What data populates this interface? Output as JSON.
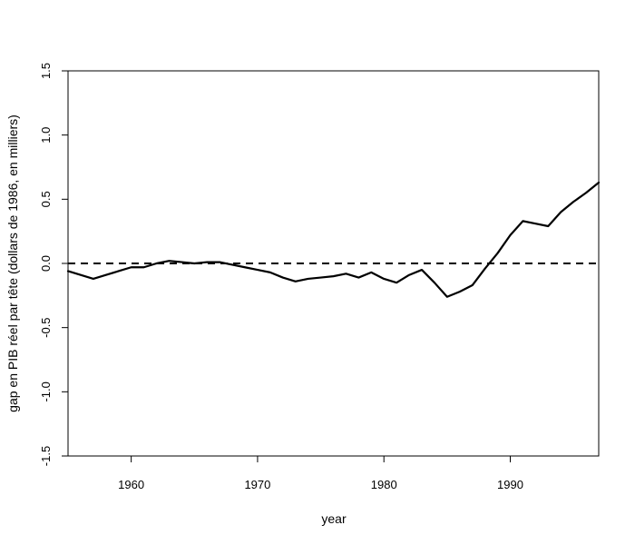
{
  "chart_data": {
    "type": "line",
    "title": "",
    "xlabel": "year",
    "ylabel": "gap en PIB réel par tête (dollars de 1986, en milliers)",
    "xlim": [
      1955,
      1997
    ],
    "ylim": [
      -1.5,
      1.5
    ],
    "x_ticks": [
      1960,
      1970,
      1980,
      1990
    ],
    "x_tick_labels": [
      "1960",
      "1970",
      "1980",
      "1990"
    ],
    "y_ticks": [
      -1.5,
      -1.0,
      -0.5,
      0.0,
      0.5,
      1.0,
      1.5
    ],
    "y_tick_labels": [
      "-1.5",
      "-1.0",
      "-0.5",
      "0.0",
      "0.5",
      "1.0",
      "1.5"
    ],
    "grid": false,
    "reference_line": {
      "y": 0,
      "style": "dashed",
      "color": "#000000"
    },
    "series": [
      {
        "color": "#000000",
        "x": [
          1955,
          1956,
          1957,
          1958,
          1959,
          1960,
          1961,
          1962,
          1963,
          1964,
          1965,
          1966,
          1967,
          1968,
          1969,
          1970,
          1971,
          1972,
          1973,
          1974,
          1975,
          1976,
          1977,
          1978,
          1979,
          1980,
          1981,
          1982,
          1983,
          1984,
          1985,
          1986,
          1987,
          1988,
          1989,
          1990,
          1991,
          1992,
          1993,
          1994,
          1995,
          1996,
          1997
        ],
        "y": [
          -0.06,
          -0.09,
          -0.12,
          -0.09,
          -0.06,
          -0.03,
          -0.03,
          0.0,
          0.02,
          0.01,
          0.0,
          0.01,
          0.01,
          -0.01,
          -0.03,
          -0.05,
          -0.07,
          -0.11,
          -0.14,
          -0.12,
          -0.11,
          -0.1,
          -0.08,
          -0.11,
          -0.07,
          -0.12,
          -0.15,
          -0.09,
          -0.05,
          -0.15,
          -0.26,
          -0.22,
          -0.17,
          -0.04,
          0.08,
          0.22,
          0.33,
          0.31,
          0.29,
          0.4,
          0.48,
          0.55,
          0.63
        ]
      }
    ]
  }
}
